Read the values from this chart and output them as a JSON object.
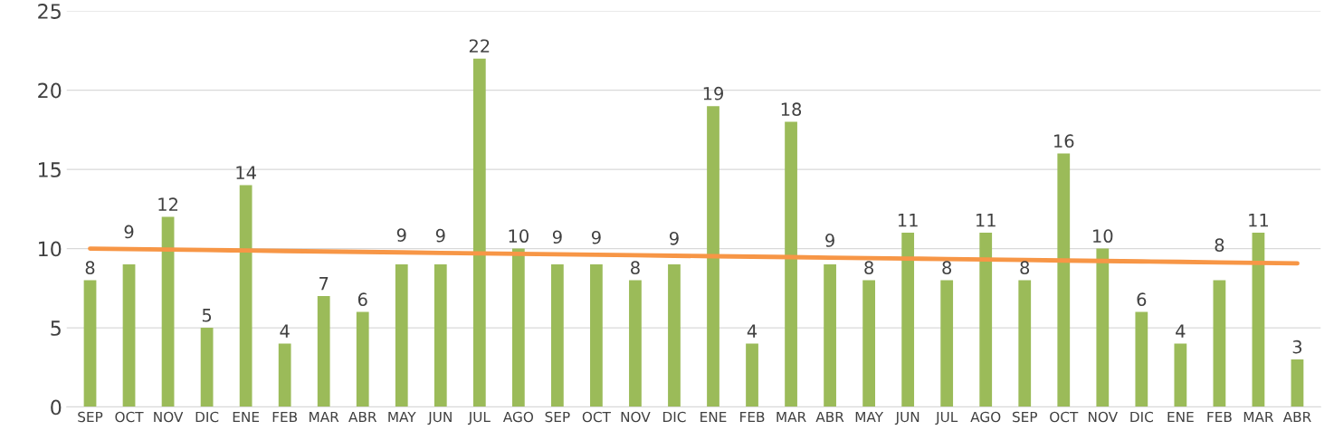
{
  "chart_data": {
    "type": "bar",
    "categories": [
      "SEP",
      "OCT",
      "NOV",
      "DIC",
      "ENE",
      "FEB",
      "MAR",
      "ABR",
      "MAY",
      "JUN",
      "JUL",
      "AGO",
      "SEP",
      "OCT",
      "NOV",
      "DIC",
      "ENE",
      "FEB",
      "MAR",
      "ABR",
      "MAY",
      "JUN",
      "JUL",
      "AGO",
      "SEP",
      "OCT",
      "NOV",
      "DIC",
      "ENE",
      "FEB",
      "MAR",
      "ABR"
    ],
    "series": [
      {
        "color": "#9bbb59",
        "values": [
          8,
          9,
          12,
          5,
          14,
          4,
          7,
          6,
          9,
          9,
          22,
          10,
          9,
          9,
          8,
          9,
          19,
          4,
          18,
          9,
          8,
          11,
          8,
          11,
          8,
          16,
          10,
          6,
          4,
          8,
          11,
          3
        ],
        "data_labels": true
      },
      {
        "type": "line",
        "color": "#f79646",
        "values": [
          10.0,
          9.97,
          9.94,
          9.91,
          9.88,
          9.85,
          9.82,
          9.79,
          9.76,
          9.73,
          9.7,
          9.67,
          9.64,
          9.61,
          9.58,
          9.55,
          9.52,
          9.49,
          9.46,
          9.43,
          9.4,
          9.37,
          9.34,
          9.31,
          9.28,
          9.25,
          9.22,
          9.19,
          9.16,
          9.13,
          9.1,
          9.07
        ]
      }
    ],
    "ylim": [
      0,
      25
    ],
    "yticks": [
      0,
      5,
      10,
      15,
      20,
      25
    ],
    "grid": "y",
    "legend": false
  }
}
